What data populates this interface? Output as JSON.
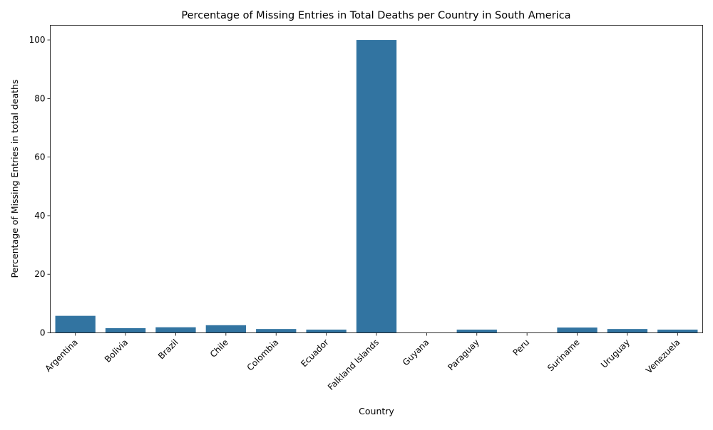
{
  "chart_data": {
    "type": "bar",
    "title": "Percentage of Missing Entries in Total Deaths per Country in South America",
    "xlabel": "Country",
    "ylabel": "Percentage of Missing Entries in total deaths",
    "categories": [
      "Argentina",
      "Bolivia",
      "Brazil",
      "Chile",
      "Colombia",
      "Ecuador",
      "Falkland Islands",
      "Guyana",
      "Paraguay",
      "Peru",
      "Suriname",
      "Uruguay",
      "Venezuela"
    ],
    "values": [
      5.8,
      1.6,
      1.9,
      2.6,
      1.3,
      1.1,
      100,
      0,
      1.1,
      0,
      1.8,
      1.3,
      1.1
    ],
    "ylim": [
      0,
      105
    ],
    "yticks": [
      0,
      20,
      40,
      60,
      80,
      100
    ],
    "bar_color": "#3274a1",
    "grid": false,
    "legend": "none"
  }
}
